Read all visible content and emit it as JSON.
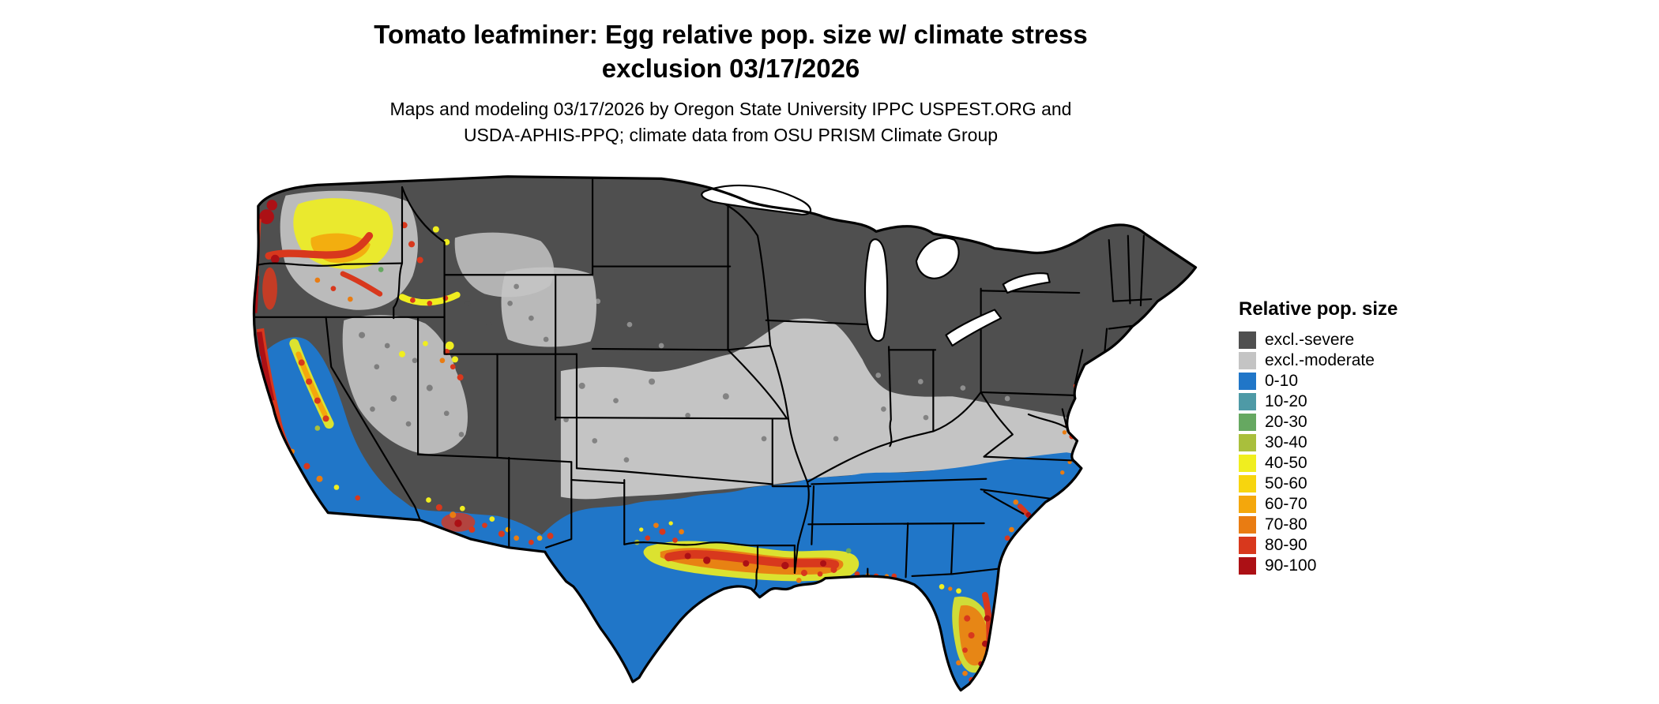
{
  "figure": {
    "title_line1": "Tomato leafminer: Egg relative pop. size w/ climate stress",
    "title_line2": "exclusion 03/17/2026",
    "subtitle_line1": "Maps and modeling 03/17/2026 by Oregon State University IPPC USPEST.ORG and",
    "subtitle_line2": "USDA-APHIS-PPQ; climate data from OSU PRISM Climate Group"
  },
  "legend": {
    "title": "Relative pop. size",
    "items": [
      {
        "key": "excl_severe",
        "label": "excl.-severe",
        "color": "#4f4f4f"
      },
      {
        "key": "excl_moderate",
        "label": "excl.-moderate",
        "color": "#c4c4c4"
      },
      {
        "key": "r0",
        "label": "0-10",
        "color": "#2076c8"
      },
      {
        "key": "r10",
        "label": "10-20",
        "color": "#4e9aa6"
      },
      {
        "key": "r20",
        "label": "20-30",
        "color": "#66a861"
      },
      {
        "key": "r30",
        "label": "30-40",
        "color": "#a9bf3c"
      },
      {
        "key": "r40",
        "label": "40-50",
        "color": "#f0ee1f"
      },
      {
        "key": "r50",
        "label": "50-60",
        "color": "#f7d50e"
      },
      {
        "key": "r60",
        "label": "60-70",
        "color": "#f4a70c"
      },
      {
        "key": "r70",
        "label": "70-80",
        "color": "#e97c12"
      },
      {
        "key": "r80",
        "label": "80-90",
        "color": "#d8381d"
      },
      {
        "key": "r90",
        "label": "90-100",
        "color": "#ac1015"
      }
    ]
  }
}
